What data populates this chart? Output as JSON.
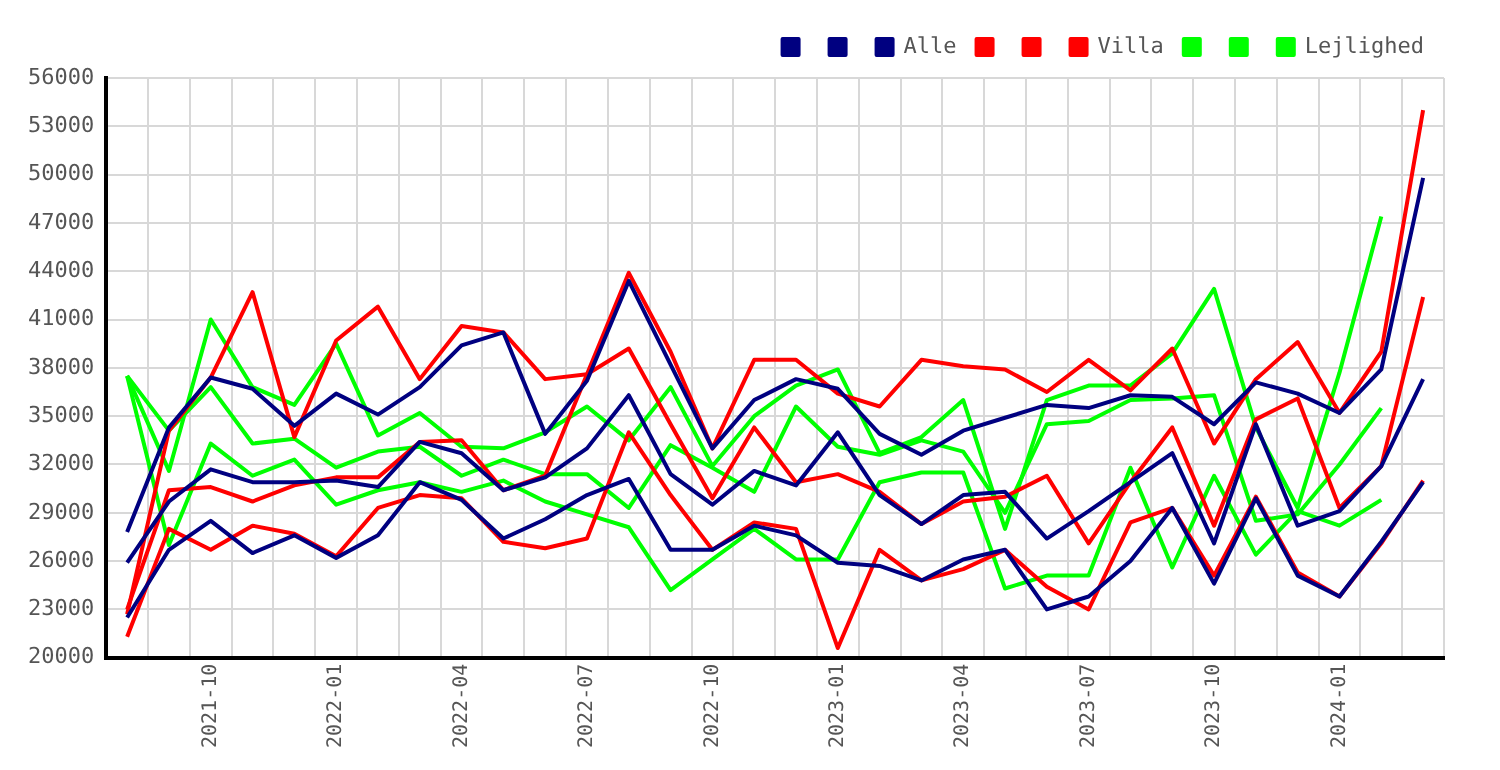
{
  "chart_data": {
    "type": "line",
    "categories": [
      null,
      null,
      "2021-10",
      null,
      null,
      "2022-01",
      null,
      null,
      "2022-04",
      null,
      null,
      "2022-07",
      null,
      null,
      "2022-10",
      null,
      null,
      "2023-01",
      null,
      null,
      "2023-04",
      null,
      null,
      "2023-07",
      null,
      null,
      "2023-10",
      null,
      null,
      "2024-01",
      null,
      null
    ],
    "series": [
      {
        "color": "#000080",
        "values": [
          27800,
          34300,
          37400,
          36700,
          34400,
          36400,
          35100,
          36800,
          39400,
          40200,
          33900,
          37200,
          43400,
          38200,
          33000,
          36000,
          37300,
          36700,
          33900,
          32600,
          34100,
          34900,
          35700,
          35500,
          36300,
          36200,
          34500,
          37100,
          36400,
          35200,
          37900,
          49800
        ]
      },
      {
        "color": "#000080",
        "values": [
          25900,
          29700,
          31700,
          30900,
          30900,
          31000,
          30600,
          33400,
          32700,
          30400,
          31200,
          33000,
          36300,
          31400,
          29500,
          31600,
          30700,
          34000,
          30100,
          28300,
          30100,
          30300,
          27400,
          29100,
          30900,
          32700,
          27100,
          34500,
          28200,
          29100,
          31900,
          37300
        ]
      },
      {
        "name": "Alle",
        "color": "#000080",
        "values": [
          22500,
          26700,
          28500,
          26500,
          27600,
          26200,
          27600,
          30900,
          29800,
          27400,
          28600,
          30100,
          31100,
          26700,
          26700,
          28200,
          27600,
          25900,
          25700,
          24800,
          26100,
          26700,
          23000,
          23800,
          26000,
          29300,
          24600,
          29900,
          25100,
          23800,
          27200,
          30900
        ]
      },
      {
        "color": "#ff0000",
        "values": [
          22700,
          34100,
          37400,
          42700,
          33700,
          39700,
          41800,
          37300,
          40600,
          40200,
          37300,
          37600,
          43900,
          39000,
          33000,
          38500,
          38500,
          36400,
          35600,
          38500,
          38100,
          37900,
          36500,
          38500,
          36600,
          39200,
          33300,
          37300,
          39600,
          35200,
          39000,
          54000
        ]
      },
      {
        "color": "#ff0000",
        "values": [
          23000,
          30400,
          30600,
          29700,
          30700,
          31200,
          31200,
          33400,
          33500,
          30400,
          31300,
          37600,
          39200,
          34500,
          29900,
          34300,
          30900,
          31400,
          30300,
          28300,
          29700,
          30000,
          31300,
          27100,
          30900,
          34300,
          28200,
          34800,
          36100,
          29300,
          31900,
          42400
        ]
      },
      {
        "name": "Villa",
        "color": "#ff0000",
        "values": [
          21300,
          28000,
          26700,
          28200,
          27700,
          26300,
          29300,
          30100,
          29900,
          27200,
          26800,
          27400,
          34000,
          30100,
          26700,
          28400,
          28000,
          20600,
          26700,
          24800,
          25500,
          26700,
          24400,
          23000,
          28400,
          29300,
          25100,
          30000,
          25300,
          23800,
          27100,
          31000
        ]
      },
      {
        "color": "#00ff00",
        "values": [
          37500,
          31600,
          41000,
          36800,
          35700,
          39500,
          33800,
          35200,
          33100,
          33000,
          34000,
          35600,
          33500,
          36800,
          31900,
          35000,
          36900,
          37900,
          32700,
          33700,
          36000,
          28000,
          36000,
          36900,
          36900,
          38900,
          42900,
          34300,
          29300,
          37700,
          47400,
          null
        ]
      },
      {
        "color": "#00ff00",
        "values": [
          37500,
          34100,
          36800,
          33300,
          33600,
          31800,
          32800,
          33100,
          31300,
          32300,
          31400,
          31400,
          29300,
          33200,
          31800,
          30300,
          35600,
          33100,
          32600,
          33500,
          32800,
          29000,
          34500,
          34700,
          36000,
          36100,
          36300,
          28500,
          28900,
          32000,
          35500,
          null
        ]
      },
      {
        "name": "Lejlighed",
        "color": "#00ff00",
        "values": [
          37500,
          27000,
          33300,
          31300,
          32300,
          29500,
          30400,
          30900,
          30300,
          31000,
          29700,
          28900,
          28100,
          24200,
          26100,
          28000,
          26100,
          26100,
          30900,
          31500,
          31500,
          24300,
          25100,
          25100,
          31800,
          25600,
          31300,
          26400,
          29100,
          28200,
          29800,
          null
        ]
      }
    ],
    "ylim": [
      20000,
      56000
    ],
    "yticks": [
      20000,
      23000,
      26000,
      29000,
      32000,
      35000,
      38000,
      41000,
      44000,
      47000,
      50000,
      53000,
      56000
    ],
    "grid": true,
    "legend": "top right",
    "marker": "none",
    "line_style": "solid"
  }
}
